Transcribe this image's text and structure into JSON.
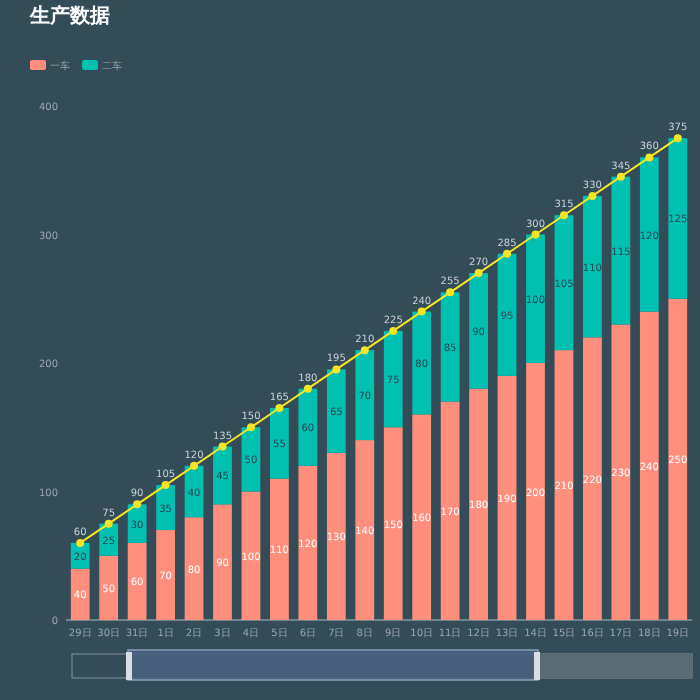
{
  "chart_data": {
    "type": "bar",
    "title": "生产数据",
    "stacked": true,
    "data_labels": true,
    "legend": "top left",
    "marker": "circle",
    "categories": [
      "29日",
      "30日",
      "31日",
      "1日",
      "2日",
      "3日",
      "4日",
      "5日",
      "6日",
      "7日",
      "8日",
      "9日",
      "10日",
      "11日",
      "12日",
      "13日",
      "14日",
      "15日",
      "16日",
      "17日",
      "18日",
      "19日"
    ],
    "ylim": [
      0,
      400
    ],
    "yticks": [
      0,
      100,
      200,
      300,
      400
    ],
    "series": [
      {
        "name": "一车",
        "color": "#ff8f7c",
        "values": [
          40,
          50,
          60,
          70,
          80,
          90,
          100,
          110,
          120,
          130,
          140,
          150,
          160,
          170,
          180,
          190,
          200,
          210,
          220,
          230,
          240,
          250
        ]
      },
      {
        "name": "二车",
        "color": "#00c0b2",
        "values": [
          20,
          25,
          30,
          35,
          40,
          45,
          50,
          55,
          60,
          65,
          70,
          75,
          80,
          85,
          90,
          95,
          100,
          105,
          110,
          115,
          120,
          125
        ]
      },
      {
        "type": "line",
        "color": "#f4e525",
        "values": [
          60,
          75,
          90,
          105,
          120,
          135,
          150,
          165,
          180,
          195,
          210,
          225,
          240,
          255,
          270,
          285,
          300,
          315,
          330,
          345,
          360,
          375
        ]
      }
    ]
  }
}
